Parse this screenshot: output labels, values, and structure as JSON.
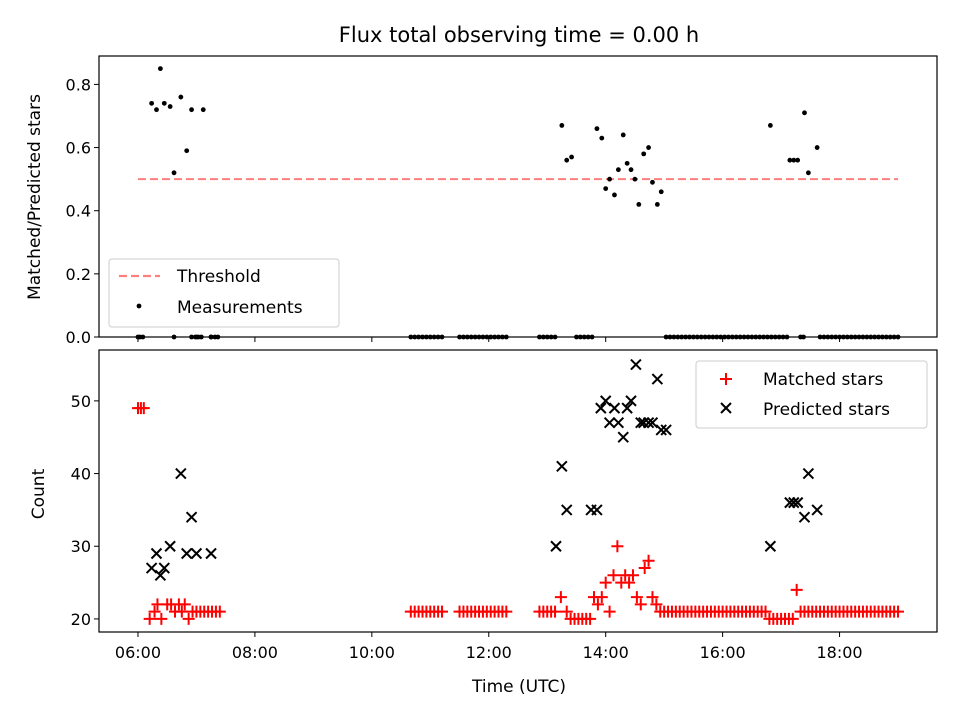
{
  "title": "Flux total observing time = 0.00 h",
  "chart_data": [
    {
      "type": "scatter",
      "ylabel": "Matched/Predicted stars",
      "xlabel": "",
      "ylim": [
        0.0,
        0.89
      ],
      "yticks": [
        "0.0",
        "0.2",
        "0.4",
        "0.6",
        "0.8"
      ],
      "grid": false,
      "legend_position": "lower-left",
      "series": [
        {
          "name": "Threshold",
          "kind": "dashed-line",
          "color": "#ff7f7f",
          "x": [
            "06:00",
            "19:00"
          ],
          "y": [
            0.5,
            0.5
          ]
        },
        {
          "name": "Measurements",
          "kind": "dots",
          "color": "#000000",
          "x": [
            "06:14",
            "06:19",
            "06:23",
            "06:27",
            "06:33",
            "06:37",
            "06:44",
            "06:50",
            "06:55",
            "07:00",
            "07:07",
            "07:15",
            "13:15",
            "13:20",
            "13:25",
            "13:51",
            "13:56",
            "14:00",
            "14:04",
            "14:09",
            "14:13",
            "14:18",
            "14:22",
            "14:26",
            "14:30",
            "14:34",
            "14:39",
            "14:44",
            "14:48",
            "14:53",
            "14:57",
            "15:02",
            "16:49",
            "17:09",
            "17:13",
            "17:17",
            "17:24",
            "17:28",
            "17:37"
          ],
          "y": [
            0.74,
            0.72,
            0.85,
            0.74,
            0.73,
            0.52,
            0.76,
            0.59,
            0.72,
            0.0,
            0.72,
            0.0,
            0.67,
            0.56,
            0.57,
            0.66,
            0.63,
            0.47,
            0.5,
            0.45,
            0.53,
            0.64,
            0.55,
            0.53,
            0.5,
            0.42,
            0.58,
            0.6,
            0.49,
            0.42,
            0.46,
            0.0,
            0.67,
            0.56,
            0.56,
            0.56,
            0.71,
            0.52,
            0.6
          ],
          "zero_x": [
            "06:00",
            "06:02",
            "06:05",
            "06:37",
            "06:55",
            "06:59",
            "07:02",
            "07:05",
            "07:15",
            "07:19",
            "07:22",
            "10:40",
            "10:44",
            "10:48",
            "10:52",
            "10:56",
            "11:00",
            "11:04",
            "11:08",
            "11:12",
            "11:30",
            "11:34",
            "11:38",
            "11:42",
            "11:46",
            "11:50",
            "11:54",
            "11:58",
            "12:02",
            "12:06",
            "12:10",
            "12:14",
            "12:18",
            "12:52",
            "12:56",
            "13:00",
            "13:04",
            "13:08",
            "13:30",
            "13:34",
            "13:38",
            "13:42",
            "13:46",
            "15:06",
            "15:10",
            "15:14",
            "15:18",
            "15:22",
            "15:26",
            "15:30",
            "15:34",
            "15:38",
            "15:42",
            "15:46",
            "15:50",
            "15:54",
            "15:58",
            "16:02",
            "16:06",
            "16:10",
            "16:14",
            "16:18",
            "16:22",
            "16:26",
            "16:30",
            "16:34",
            "16:38",
            "16:42",
            "16:46",
            "16:50",
            "16:54",
            "16:58",
            "17:02",
            "17:06",
            "17:20",
            "17:23",
            "17:40",
            "17:44",
            "17:48",
            "17:52",
            "17:56",
            "18:00",
            "18:04",
            "18:08",
            "18:12",
            "18:16",
            "18:20",
            "18:24",
            "18:28",
            "18:32",
            "18:36",
            "18:40",
            "18:44",
            "18:48",
            "18:52",
            "18:56",
            "19:00"
          ]
        }
      ]
    },
    {
      "type": "scatter",
      "ylabel": "Count",
      "xlabel": "Time (UTC)",
      "xlim": [
        "05:20",
        "19:40"
      ],
      "xticks": [
        "06:00",
        "08:00",
        "10:00",
        "12:00",
        "14:00",
        "16:00",
        "18:00"
      ],
      "ylim": [
        18.2,
        57.0
      ],
      "yticks": [
        "20",
        "30",
        "40",
        "50"
      ],
      "grid": false,
      "legend_position": "upper-right",
      "series": [
        {
          "name": "Matched stars",
          "marker": "plus",
          "color": "#ff0000",
          "x": [
            "06:00",
            "06:03",
            "06:06",
            "06:12",
            "06:17",
            "06:20",
            "06:24",
            "06:30",
            "06:34",
            "06:38",
            "06:42",
            "06:45",
            "06:48",
            "06:52",
            "06:56",
            "07:00",
            "07:04",
            "07:08",
            "07:12",
            "07:16",
            "07:20",
            "07:24",
            "10:40",
            "10:44",
            "10:48",
            "10:52",
            "10:56",
            "11:00",
            "11:04",
            "11:08",
            "11:12",
            "11:30",
            "11:34",
            "11:38",
            "11:42",
            "11:46",
            "11:50",
            "11:54",
            "11:58",
            "12:02",
            "12:06",
            "12:10",
            "12:14",
            "12:18",
            "12:52",
            "12:56",
            "13:00",
            "13:04",
            "13:08",
            "13:14",
            "13:20",
            "13:24",
            "13:28",
            "13:32",
            "13:36",
            "13:40",
            "13:44",
            "13:48",
            "13:52",
            "13:56",
            "14:00",
            "14:04",
            "14:08",
            "14:12",
            "14:16",
            "14:20",
            "14:24",
            "14:28",
            "14:32",
            "14:36",
            "14:40",
            "14:44",
            "14:48",
            "14:52",
            "14:56",
            "15:00",
            "15:04",
            "15:08",
            "15:12",
            "15:16",
            "15:20",
            "15:24",
            "15:28",
            "15:32",
            "15:36",
            "15:40",
            "15:44",
            "15:48",
            "15:52",
            "15:56",
            "16:00",
            "16:04",
            "16:08",
            "16:12",
            "16:16",
            "16:20",
            "16:24",
            "16:28",
            "16:32",
            "16:36",
            "16:40",
            "16:44",
            "16:48",
            "16:52",
            "16:56",
            "17:00",
            "17:04",
            "17:08",
            "17:12",
            "17:16",
            "17:20",
            "17:24",
            "17:28",
            "17:32",
            "17:36",
            "17:40",
            "17:44",
            "17:48",
            "17:52",
            "17:56",
            "18:00",
            "18:04",
            "18:08",
            "18:12",
            "18:16",
            "18:20",
            "18:24",
            "18:28",
            "18:32",
            "18:36",
            "18:40",
            "18:44",
            "18:48",
            "18:52",
            "18:56",
            "19:00"
          ],
          "y": [
            49,
            49,
            49,
            20,
            21,
            22,
            20,
            22,
            22,
            21,
            22,
            21,
            22,
            20,
            21,
            21,
            21,
            21,
            21,
            21,
            21,
            21,
            21,
            21,
            21,
            21,
            21,
            21,
            21,
            21,
            21,
            21,
            21,
            21,
            21,
            21,
            21,
            21,
            21,
            21,
            21,
            21,
            21,
            21,
            21,
            21,
            21,
            21,
            21,
            23,
            21,
            20,
            20,
            20,
            20,
            20,
            20,
            23,
            22,
            23,
            25,
            21,
            26,
            30,
            25,
            26,
            25,
            26,
            23,
            22,
            27,
            28,
            23,
            22,
            21,
            21,
            21,
            21,
            21,
            21,
            21,
            21,
            21,
            21,
            21,
            21,
            21,
            21,
            21,
            21,
            21,
            21,
            21,
            21,
            21,
            21,
            21,
            21,
            21,
            21,
            21,
            21,
            20,
            20,
            20,
            20,
            20,
            20,
            20,
            24,
            21,
            21,
            21,
            21,
            21,
            21,
            21,
            21,
            21,
            21,
            21,
            21,
            21,
            21,
            21,
            21,
            21,
            21,
            21,
            21,
            21,
            21,
            21,
            21,
            21,
            21
          ]
        },
        {
          "name": "Predicted stars",
          "marker": "x",
          "color": "#000000",
          "x": [
            "06:14",
            "06:19",
            "06:23",
            "06:27",
            "06:33",
            "06:44",
            "06:50",
            "06:55",
            "07:00",
            "07:15",
            "13:09",
            "13:15",
            "13:20",
            "13:45",
            "13:51",
            "13:55",
            "14:00",
            "14:04",
            "14:09",
            "14:13",
            "14:18",
            "14:22",
            "14:26",
            "14:31",
            "14:36",
            "14:39",
            "14:44",
            "14:48",
            "14:53",
            "14:57",
            "15:02",
            "16:49",
            "17:09",
            "17:13",
            "17:17",
            "17:24",
            "17:28",
            "17:37"
          ],
          "y": [
            27,
            29,
            26,
            27,
            30,
            40,
            29,
            34,
            29,
            29,
            30,
            41,
            35,
            35,
            35,
            49,
            50,
            47,
            49,
            47,
            45,
            49,
            50,
            55,
            47,
            47,
            47,
            47,
            53,
            46,
            46,
            30,
            36,
            36,
            36,
            34,
            40,
            35
          ]
        }
      ]
    }
  ]
}
